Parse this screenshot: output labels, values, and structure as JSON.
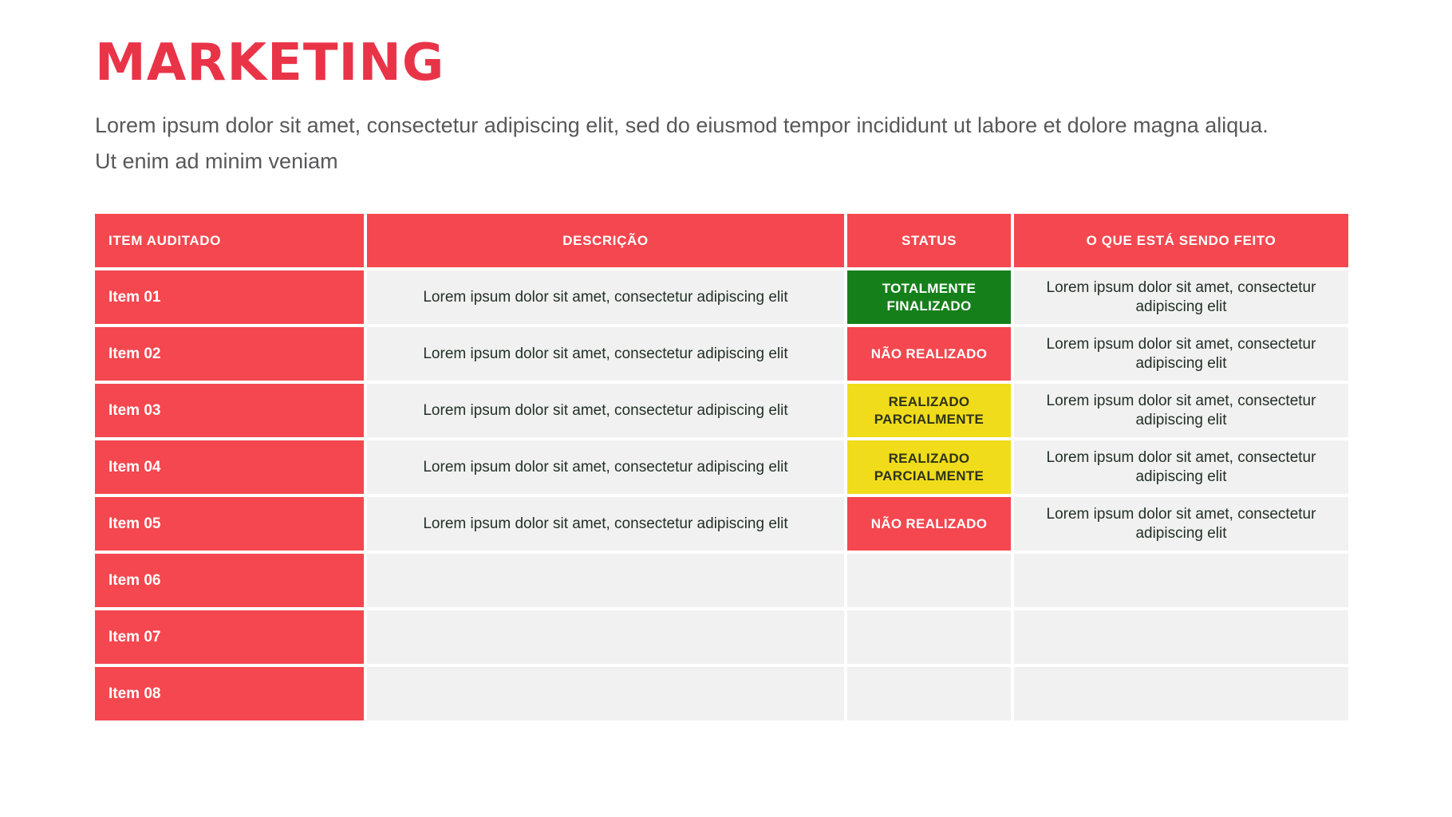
{
  "page": {
    "title": "MARKETING",
    "subtitle": "Lorem ipsum dolor sit amet, consectetur adipiscing elit, sed do eiusmod tempor incididunt ut labore et dolore magna aliqua. Ut enim ad minim veniam"
  },
  "colors": {
    "title_red": "#E93448",
    "table_red": "#F4474F",
    "status_green": "#15801A",
    "status_red": "#F4474F",
    "status_yellow": "#F0DC1B",
    "cell_gray": "#F1F1F1",
    "subtitle_gray": "#58585A",
    "cell_text": "#233026"
  },
  "table": {
    "headers": [
      "ITEM AUDITADO",
      "DESCRIÇÃO",
      "STATUS",
      "O QUE ESTÁ SENDO FEITO"
    ],
    "rows": [
      {
        "item": "Item 01",
        "descricao": "Lorem ipsum dolor sit amet, consectetur adipiscing elit",
        "status": "TOTALMENTE FINALIZADO",
        "status_type": "green",
        "feito": "Lorem ipsum dolor sit amet, consectetur adipiscing elit"
      },
      {
        "item": "Item 02",
        "descricao": "Lorem ipsum dolor sit amet, consectetur adipiscing elit",
        "status": "NÃO REALIZADO",
        "status_type": "red",
        "feito": "Lorem ipsum dolor sit amet, consectetur adipiscing elit"
      },
      {
        "item": "Item 03",
        "descricao": "Lorem ipsum dolor sit amet, consectetur adipiscing elit",
        "status": "REALIZADO PARCIALMENTE",
        "status_type": "yellow",
        "feito": "Lorem ipsum dolor sit amet, consectetur adipiscing elit"
      },
      {
        "item": "Item 04",
        "descricao": "Lorem ipsum dolor sit amet, consectetur adipiscing elit",
        "status": "REALIZADO PARCIALMENTE",
        "status_type": "yellow",
        "feito": "Lorem ipsum dolor sit amet, consectetur adipiscing elit"
      },
      {
        "item": "Item 05",
        "descricao": "Lorem ipsum dolor sit amet, consectetur adipiscing elit",
        "status": "NÃO REALIZADO",
        "status_type": "red",
        "feito": "Lorem ipsum dolor sit amet, consectetur adipiscing elit"
      },
      {
        "item": "Item 06",
        "descricao": "",
        "status": "",
        "status_type": "empty",
        "feito": ""
      },
      {
        "item": "Item 07",
        "descricao": "",
        "status": "",
        "status_type": "empty",
        "feito": ""
      },
      {
        "item": "Item 08",
        "descricao": "",
        "status": "",
        "status_type": "empty",
        "feito": ""
      }
    ]
  }
}
